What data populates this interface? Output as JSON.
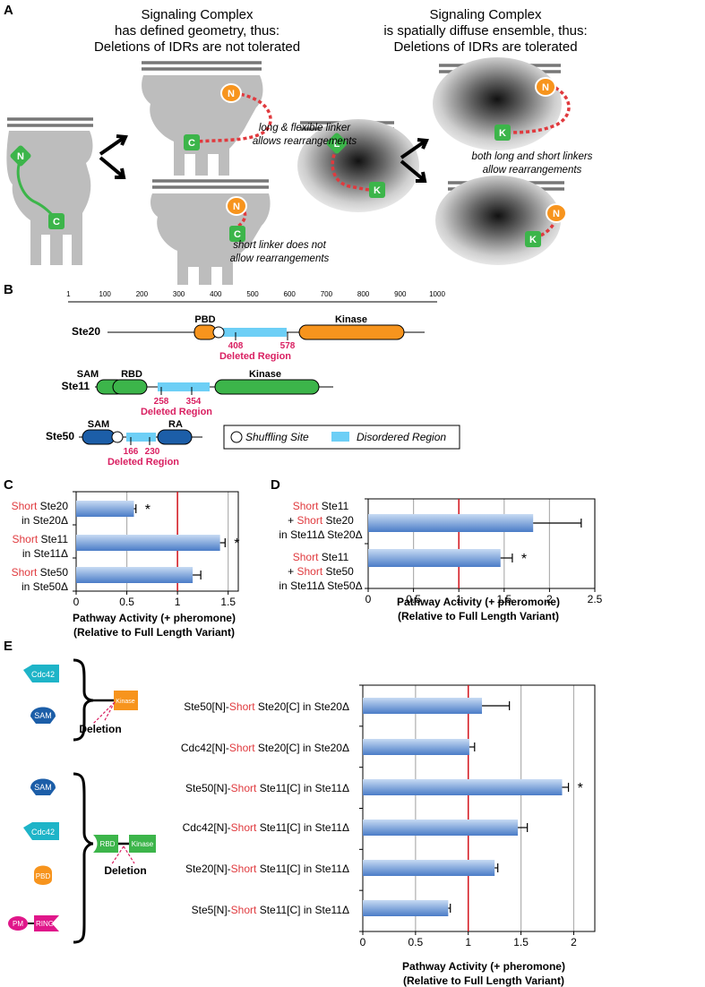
{
  "panel_a": {
    "letter": "A",
    "left_heading": [
      "Signaling Complex",
      "has defined geometry, thus:",
      "Deletions of IDRs are not tolerated"
    ],
    "right_heading": [
      "Signaling Complex",
      "is spatially diffuse ensemble, thus:",
      "Deletions of IDRs are tolerated"
    ],
    "note_long_linker": [
      "long & flexible linker",
      "allows rearrangements"
    ],
    "note_short_linker": [
      "short linker does not",
      "allow rearrangements"
    ],
    "note_both_linkers": [
      "both long and short linkers",
      "allow rearrangements"
    ],
    "domain_labels": {
      "n": "N",
      "c": "C",
      "l": "L",
      "k": "K"
    }
  },
  "panel_b": {
    "letter": "B",
    "ruler_ticks": [
      "1",
      "100",
      "200",
      "300",
      "400",
      "500",
      "600",
      "700",
      "800",
      "900",
      "1000"
    ],
    "proteins": [
      {
        "name": "Ste20",
        "domains": [
          "PBD",
          "Kinase"
        ],
        "deleted": [
          "408",
          "578"
        ],
        "deleted_label": "Deleted Region"
      },
      {
        "name": "Ste11",
        "domains": [
          "SAM",
          "RBD",
          "Kinase"
        ],
        "deleted": [
          "258",
          "354"
        ],
        "deleted_label": "Deleted Region"
      },
      {
        "name": "Ste50",
        "domains": [
          "SAM",
          "RA"
        ],
        "deleted": [
          "166",
          "230"
        ],
        "deleted_label": "Deleted Region"
      }
    ],
    "legend": {
      "shuffling": "Shuffling Site",
      "disordered": "Disordered Region"
    }
  },
  "panel_c": {
    "letter": "C",
    "row_labels": [
      {
        "short": "Short",
        "rest": " Ste20",
        "line2": "in Ste20Δ"
      },
      {
        "short": "Short",
        "rest": " Ste11",
        "line2": "in Ste11Δ"
      },
      {
        "short": "Short",
        "rest": " Ste50",
        "line2": "in Ste50Δ"
      }
    ],
    "xlabel": [
      "Pathway Activity (+ pheromone)",
      "(Relative to Full Length Variant)"
    ]
  },
  "panel_d": {
    "letter": "D",
    "row_labels": [
      {
        "line1": "Short Ste11",
        "line2": "+ Short Ste20",
        "line3": "in Ste11Δ Ste20Δ"
      },
      {
        "line1": "Short Ste11",
        "line2": "+ Short Ste50",
        "line3": "in Ste11Δ Ste50Δ"
      }
    ],
    "xlabel": [
      "Pathway Activity (+ pheromone)",
      "(Relative to Full Length Variant)"
    ]
  },
  "panel_e": {
    "letter": "E",
    "icons": {
      "cdc42": "Cdc42",
      "sam": "SAM",
      "kinase": "Kinase",
      "rbd": "RBD",
      "pbd": "PBD",
      "pm": "PM",
      "ring": "RING",
      "deletion": "Deletion"
    },
    "row_labels": [
      {
        "pre": "Ste50[N]-",
        "short": "Short",
        "post": " Ste20[C] in Ste20Δ"
      },
      {
        "pre": "Cdc42[N]-",
        "short": "Short",
        "post": " Ste20[C] in Ste20Δ"
      },
      {
        "pre": "Ste50[N]-",
        "short": "Short",
        "post": " Ste11[C] in Ste11Δ"
      },
      {
        "pre": "Cdc42[N]-",
        "short": "Short",
        "post": " Ste11[C] in Ste11Δ"
      },
      {
        "pre": "Ste20[N]-",
        "short": "Short",
        "post": " Ste11[C] in Ste11Δ"
      },
      {
        "pre": "Ste5[N]-",
        "short": "Short",
        "post": " Ste11[C] in Ste11Δ"
      }
    ],
    "xlabel": [
      "Pathway Activity (+ pheromone)",
      "(Relative to Full Length Variant)"
    ]
  },
  "chart_data": [
    {
      "type": "bar",
      "panel": "C",
      "orientation": "horizontal",
      "categories": [
        "Short Ste20 in Ste20Δ",
        "Short Ste11 in Ste11Δ",
        "Short Ste50 in Ste50Δ"
      ],
      "values": [
        0.57,
        1.42,
        1.15
      ],
      "errors": [
        0.02,
        0.05,
        0.08
      ],
      "significant": [
        "*",
        "*",
        ""
      ],
      "xlabel": "Pathway Activity (+ pheromone) (Relative to Full Length Variant)",
      "xlim": [
        0,
        1.6
      ],
      "xticks": [
        "0",
        "0.5",
        "1",
        "1.5"
      ],
      "reference_line": 1,
      "grid": "vertical"
    },
    {
      "type": "bar",
      "panel": "D",
      "orientation": "horizontal",
      "categories": [
        "Short Ste11 + Short Ste20 in Ste11Δ Ste20Δ",
        "Short Ste11 + Short Ste50 in Ste11Δ Ste50Δ"
      ],
      "values": [
        1.82,
        1.46
      ],
      "errors": [
        0.53,
        0.13
      ],
      "significant": [
        "",
        "*"
      ],
      "xlabel": "Pathway Activity (+ pheromone) (Relative to Full Length Variant)",
      "xlim": [
        0,
        2.5
      ],
      "xticks": [
        "0",
        "0.5",
        "1",
        "1.5",
        "2",
        "2.5"
      ],
      "reference_line": 1,
      "grid": "vertical"
    },
    {
      "type": "bar",
      "panel": "E",
      "orientation": "horizontal",
      "categories": [
        "Ste50[N]-Short Ste20[C] in Ste20Δ",
        "Cdc42[N]-Short Ste20[C] in Ste20Δ",
        "Ste50[N]-Short Ste11[C] in Ste11Δ",
        "Cdc42[N]-Short Ste11[C] in Ste11Δ",
        "Ste20[N]-Short Ste11[C] in Ste11Δ",
        "Ste5[N]-Short Ste11[C] in Ste11Δ"
      ],
      "values": [
        1.13,
        1.01,
        1.89,
        1.47,
        1.25,
        0.81
      ],
      "errors": [
        0.26,
        0.05,
        0.06,
        0.09,
        0.03,
        0.02
      ],
      "significant": [
        "",
        "",
        "*",
        "",
        "",
        ""
      ],
      "xlabel": "Pathway Activity (+ pheromone) (Relative to Full Length Variant)",
      "xlim": [
        0,
        2.2
      ],
      "xticks": [
        "0",
        "0.5",
        "1",
        "1.5",
        "2"
      ],
      "reference_line": 1,
      "grid": "vertical"
    }
  ],
  "colors": {
    "domain_green": "#3cb54a",
    "domain_orange": "#f7941d",
    "domain_blue": "#1c5ea8",
    "linker_red": "#e03a3e",
    "deleted_pink": "#d91f61",
    "disordered_blue": "#6dcff6",
    "bar_light": "#a9c6ec",
    "bar_dark": "#4a7cc7",
    "cdc42_teal": "#1eb4c8",
    "pm_magenta": "#e0178a"
  }
}
